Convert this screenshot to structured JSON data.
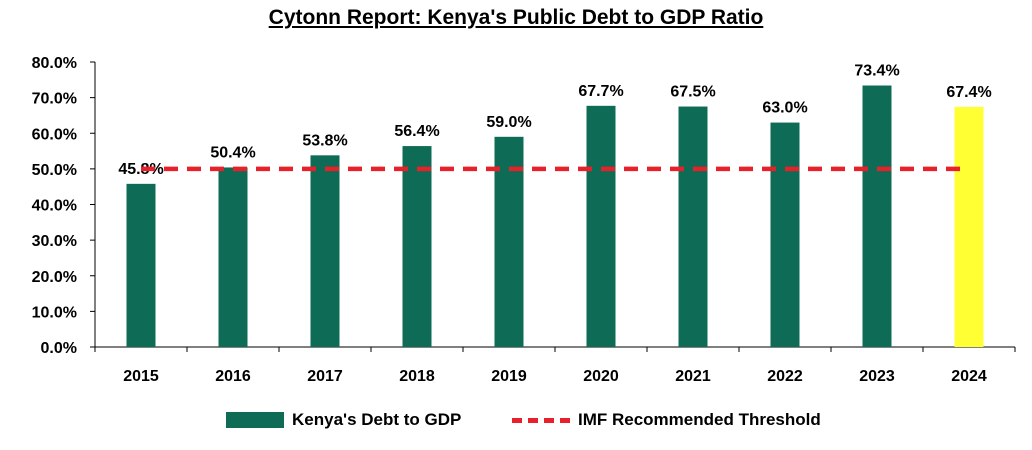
{
  "chart_data": {
    "type": "bar",
    "title": "Cytonn Report: Kenya's Public Debt to GDP Ratio",
    "categories": [
      "2015",
      "2016",
      "2017",
      "2018",
      "2019",
      "2020",
      "2021",
      "2022",
      "2023",
      "2024"
    ],
    "series": [
      {
        "name": "Kenya's Debt to GDP",
        "values": [
          45.8,
          50.4,
          53.8,
          56.4,
          59.0,
          67.7,
          67.5,
          63.0,
          73.4,
          67.4
        ],
        "labels": [
          "45.8%",
          "50.4%",
          "53.8%",
          "56.4%",
          "59.0%",
          "67.7%",
          "67.5%",
          "63.0%",
          "73.4%",
          "67.4%"
        ],
        "color": "#0e6b55",
        "highlight_last_color": "#ffff33"
      },
      {
        "name": "IMF Recommended Threshold",
        "type": "line",
        "style": "dashed",
        "values": [
          50,
          50,
          50,
          50,
          50,
          50,
          50,
          50,
          50,
          50
        ],
        "color": "#e8202a"
      }
    ],
    "ylim": [
      0,
      80
    ],
    "yticks": [
      "0.0%",
      "10.0%",
      "20.0%",
      "30.0%",
      "40.0%",
      "50.0%",
      "60.0%",
      "70.0%",
      "80.0%"
    ],
    "xlabel": "",
    "ylabel": "",
    "legend_position": "bottom",
    "grid": false
  }
}
